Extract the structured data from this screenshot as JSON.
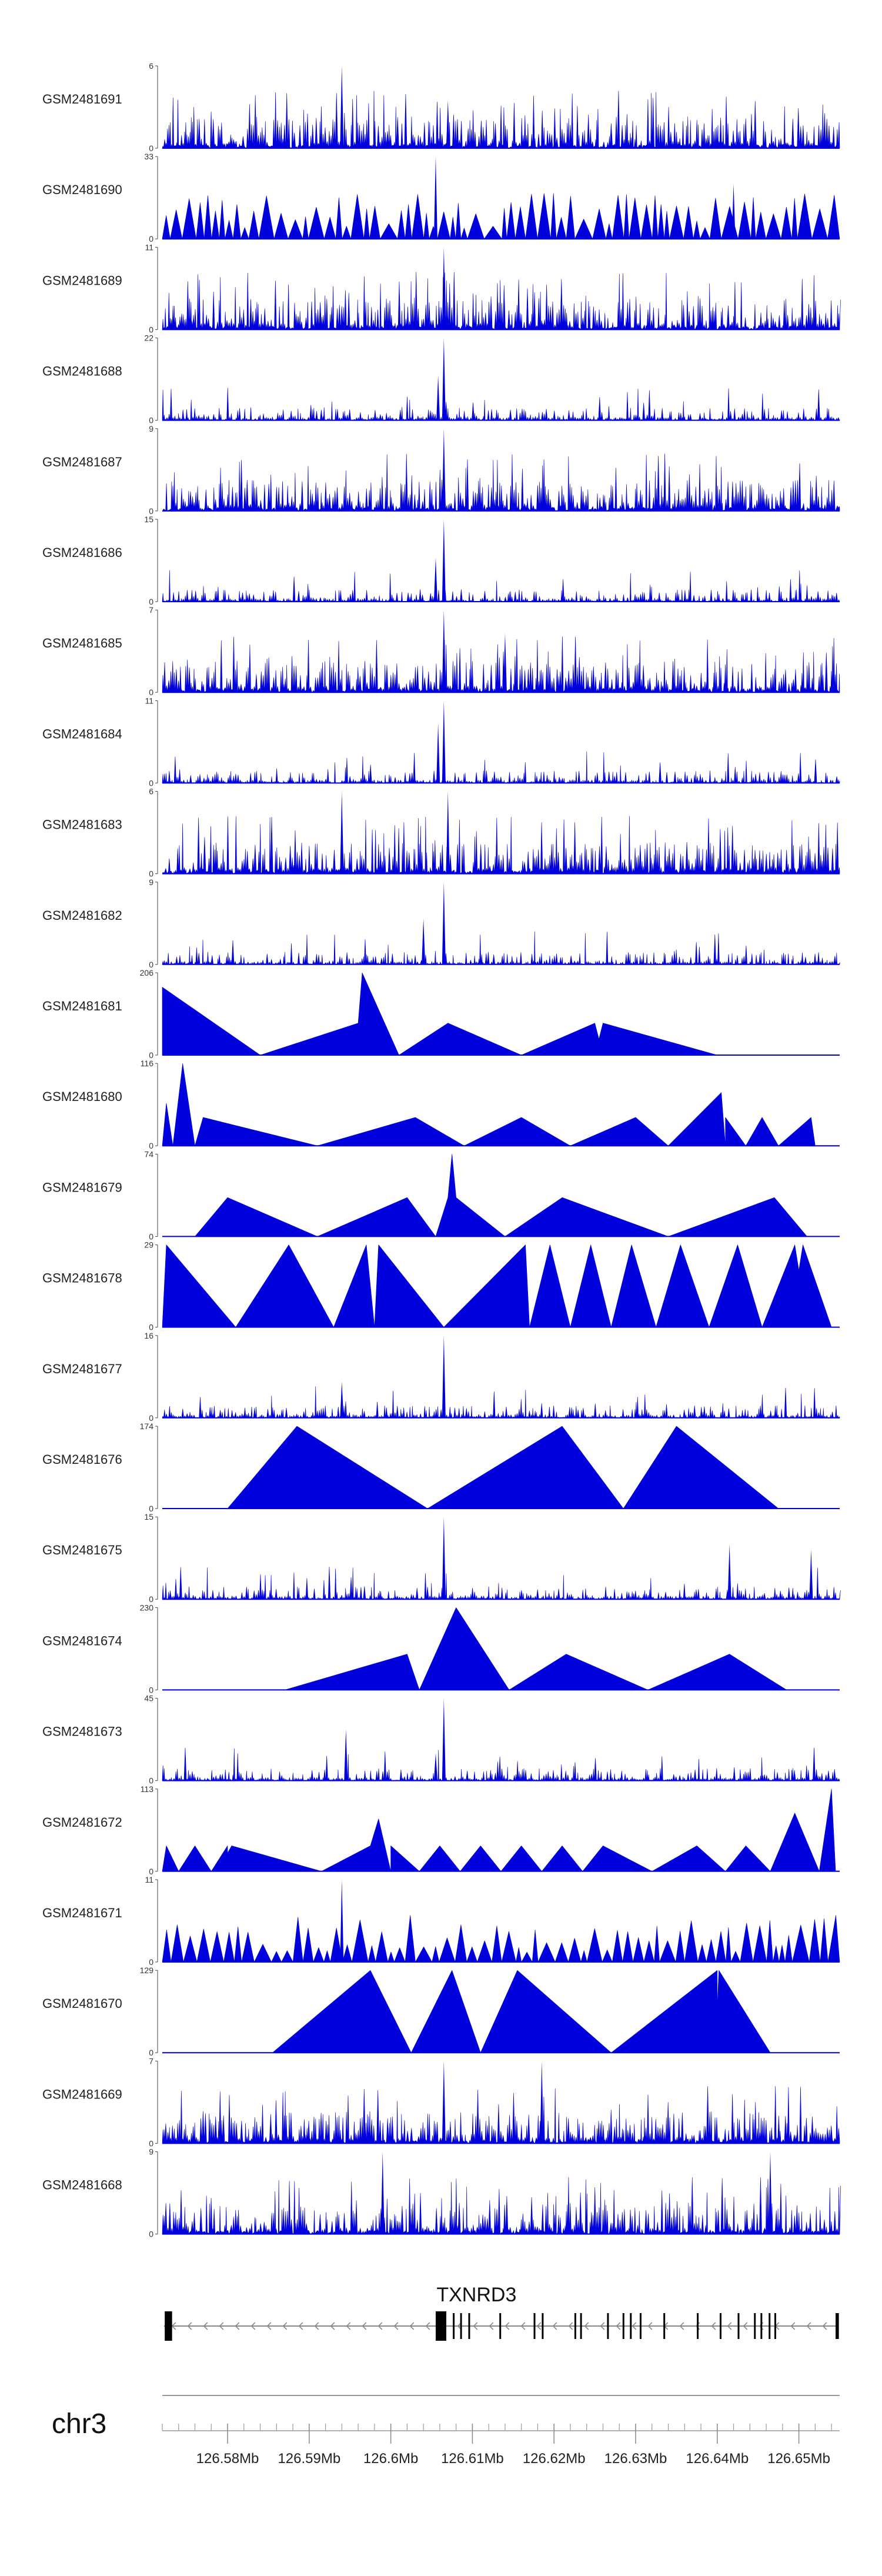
{
  "chart_data": {
    "type": "area",
    "title": "",
    "chromosome": "chr3",
    "xlim_mb": [
      126.572,
      126.655
    ],
    "x_ticks": [
      {
        "value": 126.58,
        "label": "126.58Mb"
      },
      {
        "value": 126.59,
        "label": "126.59Mb"
      },
      {
        "value": 126.6,
        "label": "126.6Mb"
      },
      {
        "value": 126.61,
        "label": "126.61Mb"
      },
      {
        "value": 126.62,
        "label": "126.62Mb"
      },
      {
        "value": 126.63,
        "label": "126.63Mb"
      },
      {
        "value": 126.64,
        "label": "126.64Mb"
      },
      {
        "value": 126.65,
        "label": "126.65Mb"
      }
    ],
    "series_color": "#0000dd",
    "series": [
      {
        "name": "GSM2481691",
        "ymax": 6,
        "style": "dense",
        "seed": 11,
        "peaks": [
          [
            126.594,
            6
          ],
          [
            126.607,
            3.5
          ]
        ]
      },
      {
        "name": "GSM2481690",
        "ymax": 33,
        "style": "triangles",
        "seed": 23,
        "peaks": [
          [
            126.6055,
            33
          ],
          [
            126.642,
            22
          ]
        ]
      },
      {
        "name": "GSM2481689",
        "ymax": 11,
        "style": "dense",
        "seed": 37,
        "peaks": [
          [
            126.6065,
            11
          ]
        ]
      },
      {
        "name": "GSM2481688",
        "ymax": 22,
        "style": "spiky",
        "seed": 41,
        "peaks": [
          [
            126.6065,
            22
          ],
          [
            126.6058,
            12
          ]
        ]
      },
      {
        "name": "GSM2481687",
        "ymax": 9,
        "style": "dense",
        "seed": 53,
        "peaks": [
          [
            126.6065,
            9
          ]
        ]
      },
      {
        "name": "GSM2481686",
        "ymax": 15,
        "style": "spiky",
        "seed": 61,
        "peaks": [
          [
            126.6065,
            15
          ],
          [
            126.6055,
            8
          ]
        ]
      },
      {
        "name": "GSM2481685",
        "ymax": 7,
        "style": "dense",
        "seed": 71,
        "peaks": [
          [
            126.6065,
            7
          ],
          [
            126.614,
            5
          ]
        ]
      },
      {
        "name": "GSM2481684",
        "ymax": 11,
        "style": "spiky",
        "seed": 83,
        "peaks": [
          [
            126.6065,
            11
          ],
          [
            126.6058,
            8
          ]
        ]
      },
      {
        "name": "GSM2481683",
        "ymax": 6,
        "style": "dense",
        "seed": 97,
        "peaks": [
          [
            126.594,
            6
          ],
          [
            126.607,
            6
          ]
        ]
      },
      {
        "name": "GSM2481682",
        "ymax": 9,
        "style": "spiky",
        "seed": 101,
        "peaks": [
          [
            126.6065,
            9
          ],
          [
            126.604,
            5
          ]
        ]
      },
      {
        "name": "GSM2481681",
        "ymax": 206,
        "style": "polygon",
        "verts": [
          [
            126.572,
            0
          ],
          [
            126.572,
            170
          ],
          [
            126.584,
            0
          ],
          [
            126.596,
            80
          ],
          [
            126.5965,
            206
          ],
          [
            126.601,
            0
          ],
          [
            126.607,
            80
          ],
          [
            126.616,
            0
          ],
          [
            126.625,
            80
          ],
          [
            126.6255,
            40
          ],
          [
            126.626,
            80
          ],
          [
            126.64,
            0
          ]
        ]
      },
      {
        "name": "GSM2481680",
        "ymax": 116,
        "style": "polygon",
        "verts": [
          [
            126.572,
            0
          ],
          [
            126.5725,
            60
          ],
          [
            126.5733,
            0
          ],
          [
            126.5745,
            116
          ],
          [
            126.576,
            0
          ],
          [
            126.577,
            40
          ],
          [
            126.591,
            0
          ],
          [
            126.603,
            40
          ],
          [
            126.609,
            0
          ],
          [
            126.616,
            40
          ],
          [
            126.622,
            0
          ],
          [
            126.63,
            40
          ],
          [
            126.634,
            0
          ],
          [
            126.6405,
            75
          ],
          [
            126.641,
            0
          ],
          [
            126.641,
            40
          ],
          [
            126.6435,
            0
          ],
          [
            126.6455,
            40
          ],
          [
            126.6475,
            0
          ],
          [
            126.6515,
            40
          ],
          [
            126.652,
            0
          ]
        ]
      },
      {
        "name": "GSM2481679",
        "ymax": 74,
        "style": "polygon",
        "verts": [
          [
            126.576,
            0
          ],
          [
            126.58,
            35
          ],
          [
            126.591,
            0
          ],
          [
            126.602,
            35
          ],
          [
            126.6055,
            0
          ],
          [
            126.607,
            35
          ],
          [
            126.6075,
            74
          ],
          [
            126.608,
            35
          ],
          [
            126.614,
            0
          ],
          [
            126.621,
            35
          ],
          [
            126.634,
            0
          ],
          [
            126.647,
            35
          ],
          [
            126.651,
            0
          ]
        ]
      },
      {
        "name": "GSM2481678",
        "ymax": 29,
        "style": "polygon",
        "verts": [
          [
            126.572,
            0
          ],
          [
            126.5725,
            29
          ],
          [
            126.581,
            0
          ],
          [
            126.5875,
            29
          ],
          [
            126.593,
            0
          ],
          [
            126.597,
            29
          ],
          [
            126.598,
            0
          ],
          [
            126.5985,
            29
          ],
          [
            126.6065,
            0
          ],
          [
            126.6165,
            29
          ],
          [
            126.617,
            0
          ],
          [
            126.6195,
            29
          ],
          [
            126.622,
            0
          ],
          [
            126.6245,
            29
          ],
          [
            126.627,
            0
          ],
          [
            126.6295,
            29
          ],
          [
            126.6325,
            0
          ],
          [
            126.6355,
            29
          ],
          [
            126.639,
            0
          ],
          [
            126.6425,
            29
          ],
          [
            126.6455,
            0
          ],
          [
            126.6495,
            29
          ],
          [
            126.65,
            20
          ],
          [
            126.6505,
            29
          ],
          [
            126.654,
            0
          ]
        ]
      },
      {
        "name": "GSM2481677",
        "ymax": 16,
        "style": "spiky",
        "seed": 131,
        "peaks": [
          [
            126.6065,
            16
          ],
          [
            126.594,
            7
          ]
        ]
      },
      {
        "name": "GSM2481676",
        "ymax": 174,
        "style": "polygon",
        "verts": [
          [
            126.58,
            0
          ],
          [
            126.5885,
            174
          ],
          [
            126.6045,
            0
          ],
          [
            126.621,
            174
          ],
          [
            126.6285,
            0
          ],
          [
            126.635,
            174
          ],
          [
            126.6475,
            0
          ]
        ]
      },
      {
        "name": "GSM2481675",
        "ymax": 15,
        "style": "spiky",
        "seed": 151,
        "peaks": [
          [
            126.6065,
            15
          ],
          [
            126.6415,
            10
          ],
          [
            126.6515,
            9
          ]
        ]
      },
      {
        "name": "GSM2481674",
        "ymax": 230,
        "style": "polygon",
        "verts": [
          [
            126.587,
            0
          ],
          [
            126.602,
            100
          ],
          [
            126.6035,
            0
          ],
          [
            126.608,
            230
          ],
          [
            126.6145,
            0
          ],
          [
            126.6215,
            100
          ],
          [
            126.6315,
            0
          ],
          [
            126.6415,
            100
          ],
          [
            126.6485,
            0
          ]
        ]
      },
      {
        "name": "GSM2481673",
        "ymax": 45,
        "style": "spiky",
        "seed": 173,
        "peaks": [
          [
            126.6065,
            45
          ],
          [
            126.5945,
            28
          ],
          [
            126.6055,
            15
          ]
        ]
      },
      {
        "name": "GSM2481672",
        "ymax": 113,
        "style": "polygon",
        "verts": [
          [
            126.572,
            0
          ],
          [
            126.5725,
            35
          ],
          [
            126.574,
            0
          ],
          [
            126.576,
            35
          ],
          [
            126.578,
            0
          ],
          [
            126.58,
            35
          ],
          [
            126.58,
            25
          ],
          [
            126.5805,
            35
          ],
          [
            126.5915,
            0
          ],
          [
            126.5975,
            35
          ],
          [
            126.5985,
            72
          ],
          [
            126.6,
            0
          ],
          [
            126.6,
            35
          ],
          [
            126.6035,
            0
          ],
          [
            126.606,
            35
          ],
          [
            126.6085,
            0
          ],
          [
            126.611,
            35
          ],
          [
            126.6135,
            0
          ],
          [
            126.616,
            35
          ],
          [
            126.6185,
            0
          ],
          [
            126.621,
            35
          ],
          [
            126.6235,
            0
          ],
          [
            126.626,
            35
          ],
          [
            126.632,
            0
          ],
          [
            126.6375,
            35
          ],
          [
            126.641,
            0
          ],
          [
            126.6435,
            35
          ],
          [
            126.6465,
            0
          ],
          [
            126.6495,
            80
          ],
          [
            126.6525,
            0
          ],
          [
            126.654,
            113
          ],
          [
            126.6545,
            0
          ]
        ]
      },
      {
        "name": "GSM2481671",
        "ymax": 11,
        "style": "triangles",
        "seed": 191,
        "peaks": [
          [
            126.594,
            11
          ]
        ]
      },
      {
        "name": "GSM2481670",
        "ymax": 129,
        "style": "polygon",
        "verts": [
          [
            126.5855,
            0
          ],
          [
            126.5975,
            129
          ],
          [
            126.6025,
            0
          ],
          [
            126.6075,
            129
          ],
          [
            126.611,
            0
          ],
          [
            126.6155,
            129
          ],
          [
            126.627,
            0
          ],
          [
            126.64,
            129
          ],
          [
            126.64,
            70
          ],
          [
            126.6402,
            129
          ],
          [
            126.6465,
            0
          ]
        ]
      },
      {
        "name": "GSM2481669",
        "ymax": 7,
        "style": "dense",
        "seed": 211,
        "peaks": [
          [
            126.6065,
            7
          ],
          [
            126.6185,
            7
          ]
        ]
      },
      {
        "name": "GSM2481668",
        "ymax": 9,
        "style": "dense",
        "seed": 223,
        "peaks": [
          [
            126.6465,
            9
          ],
          [
            126.599,
            9
          ]
        ]
      }
    ],
    "gene": {
      "name": "TXNRD3",
      "strand": "-",
      "start": 126.5722,
      "end": 126.6548,
      "exons": [
        [
          126.5723,
          126.5732
        ],
        [
          126.6055,
          126.6068
        ],
        [
          126.6076,
          126.6078
        ],
        [
          126.6085,
          126.6087
        ],
        [
          126.6095,
          126.6097
        ],
        [
          126.6133,
          126.6135
        ],
        [
          126.6175,
          126.6177
        ],
        [
          126.6185,
          126.6187
        ],
        [
          126.6225,
          126.6227
        ],
        [
          126.6232,
          126.6234
        ],
        [
          126.6265,
          126.6267
        ],
        [
          126.6284,
          126.6286
        ],
        [
          126.6293,
          126.6295
        ],
        [
          126.6305,
          126.6307
        ],
        [
          126.6334,
          126.6336
        ],
        [
          126.6375,
          126.6377
        ],
        [
          126.6403,
          126.6405
        ],
        [
          126.6425,
          126.6427
        ],
        [
          126.6445,
          126.6447
        ],
        [
          126.6453,
          126.6455
        ],
        [
          126.6463,
          126.6465
        ],
        [
          126.647,
          126.6472
        ],
        [
          126.6545,
          126.6549
        ]
      ]
    }
  }
}
